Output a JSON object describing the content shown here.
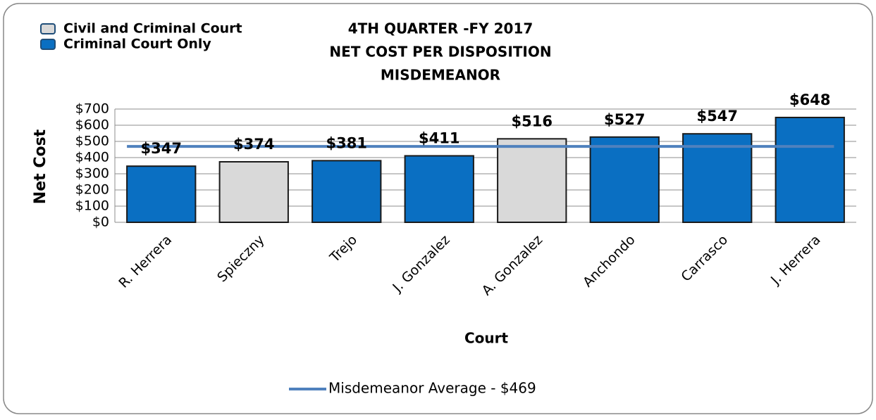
{
  "chart_data": {
    "type": "bar",
    "title": [
      "4TH QUARTER -FY 2017",
      "NET COST PER DISPOSITION",
      "MISDEMEANOR"
    ],
    "x_label": "Court",
    "y_label": "Net Cost",
    "categories": [
      "R. Herrera",
      "Spieczny",
      "Trejo",
      "J. Gonzalez",
      "A. Gonzalez",
      "Anchondo",
      "Carrasco",
      "J. Herrera"
    ],
    "values": [
      347,
      374,
      381,
      411,
      516,
      527,
      547,
      648
    ],
    "value_labels": [
      "$347",
      "$374",
      "$381",
      "$411",
      "$516",
      "$527",
      "$547",
      "$648"
    ],
    "colors": [
      "#0a6fc2",
      "#d9d9d9",
      "#0a6fc2",
      "#0a6fc2",
      "#d9d9d9",
      "#0a6fc2",
      "#0a6fc2",
      "#0a6fc2"
    ],
    "legend": [
      {
        "name": "Civil and Criminal Court",
        "color": "#d9d9d9"
      },
      {
        "name": "Criminal Court Only",
        "color": "#0a6fc2"
      }
    ],
    "reference_line": {
      "value": 469,
      "label": "Misdemeanor Average - $469",
      "color": "#4f81bd"
    },
    "ylim": [
      0,
      700
    ],
    "yticks": [
      {
        "value": 0,
        "label": "$0"
      },
      {
        "value": 100,
        "label": "$100"
      },
      {
        "value": 200,
        "label": "$200"
      },
      {
        "value": 300,
        "label": "$300"
      },
      {
        "value": 400,
        "label": "$400"
      },
      {
        "value": 500,
        "label": "$500"
      },
      {
        "value": 600,
        "label": "$600"
      },
      {
        "value": 700,
        "label": "$700"
      }
    ],
    "grid": true
  }
}
